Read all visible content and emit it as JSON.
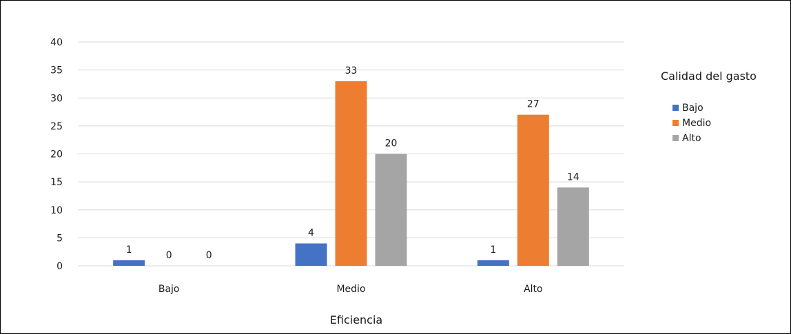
{
  "chart_data": {
    "type": "bar",
    "categories": [
      "Bajo",
      "Medio",
      "Alto"
    ],
    "series": [
      {
        "name": "Bajo",
        "values": [
          1,
          4,
          1
        ],
        "color": "#4472c4"
      },
      {
        "name": "Medio",
        "values": [
          0,
          33,
          27
        ],
        "color": "#ed7d31"
      },
      {
        "name": "Alto",
        "values": [
          0,
          20,
          14
        ],
        "color": "#a5a5a5"
      }
    ],
    "title": "",
    "xlabel": "Eficiencia",
    "ylabel": "",
    "ylim": [
      0,
      40
    ],
    "yticks": [
      0,
      5,
      10,
      15,
      20,
      25,
      30,
      35,
      40
    ],
    "grid": true,
    "grid_color": "#d9d9d9",
    "legend": {
      "title": "Calidad del gasto",
      "placement": "right"
    },
    "data_labels": true
  }
}
